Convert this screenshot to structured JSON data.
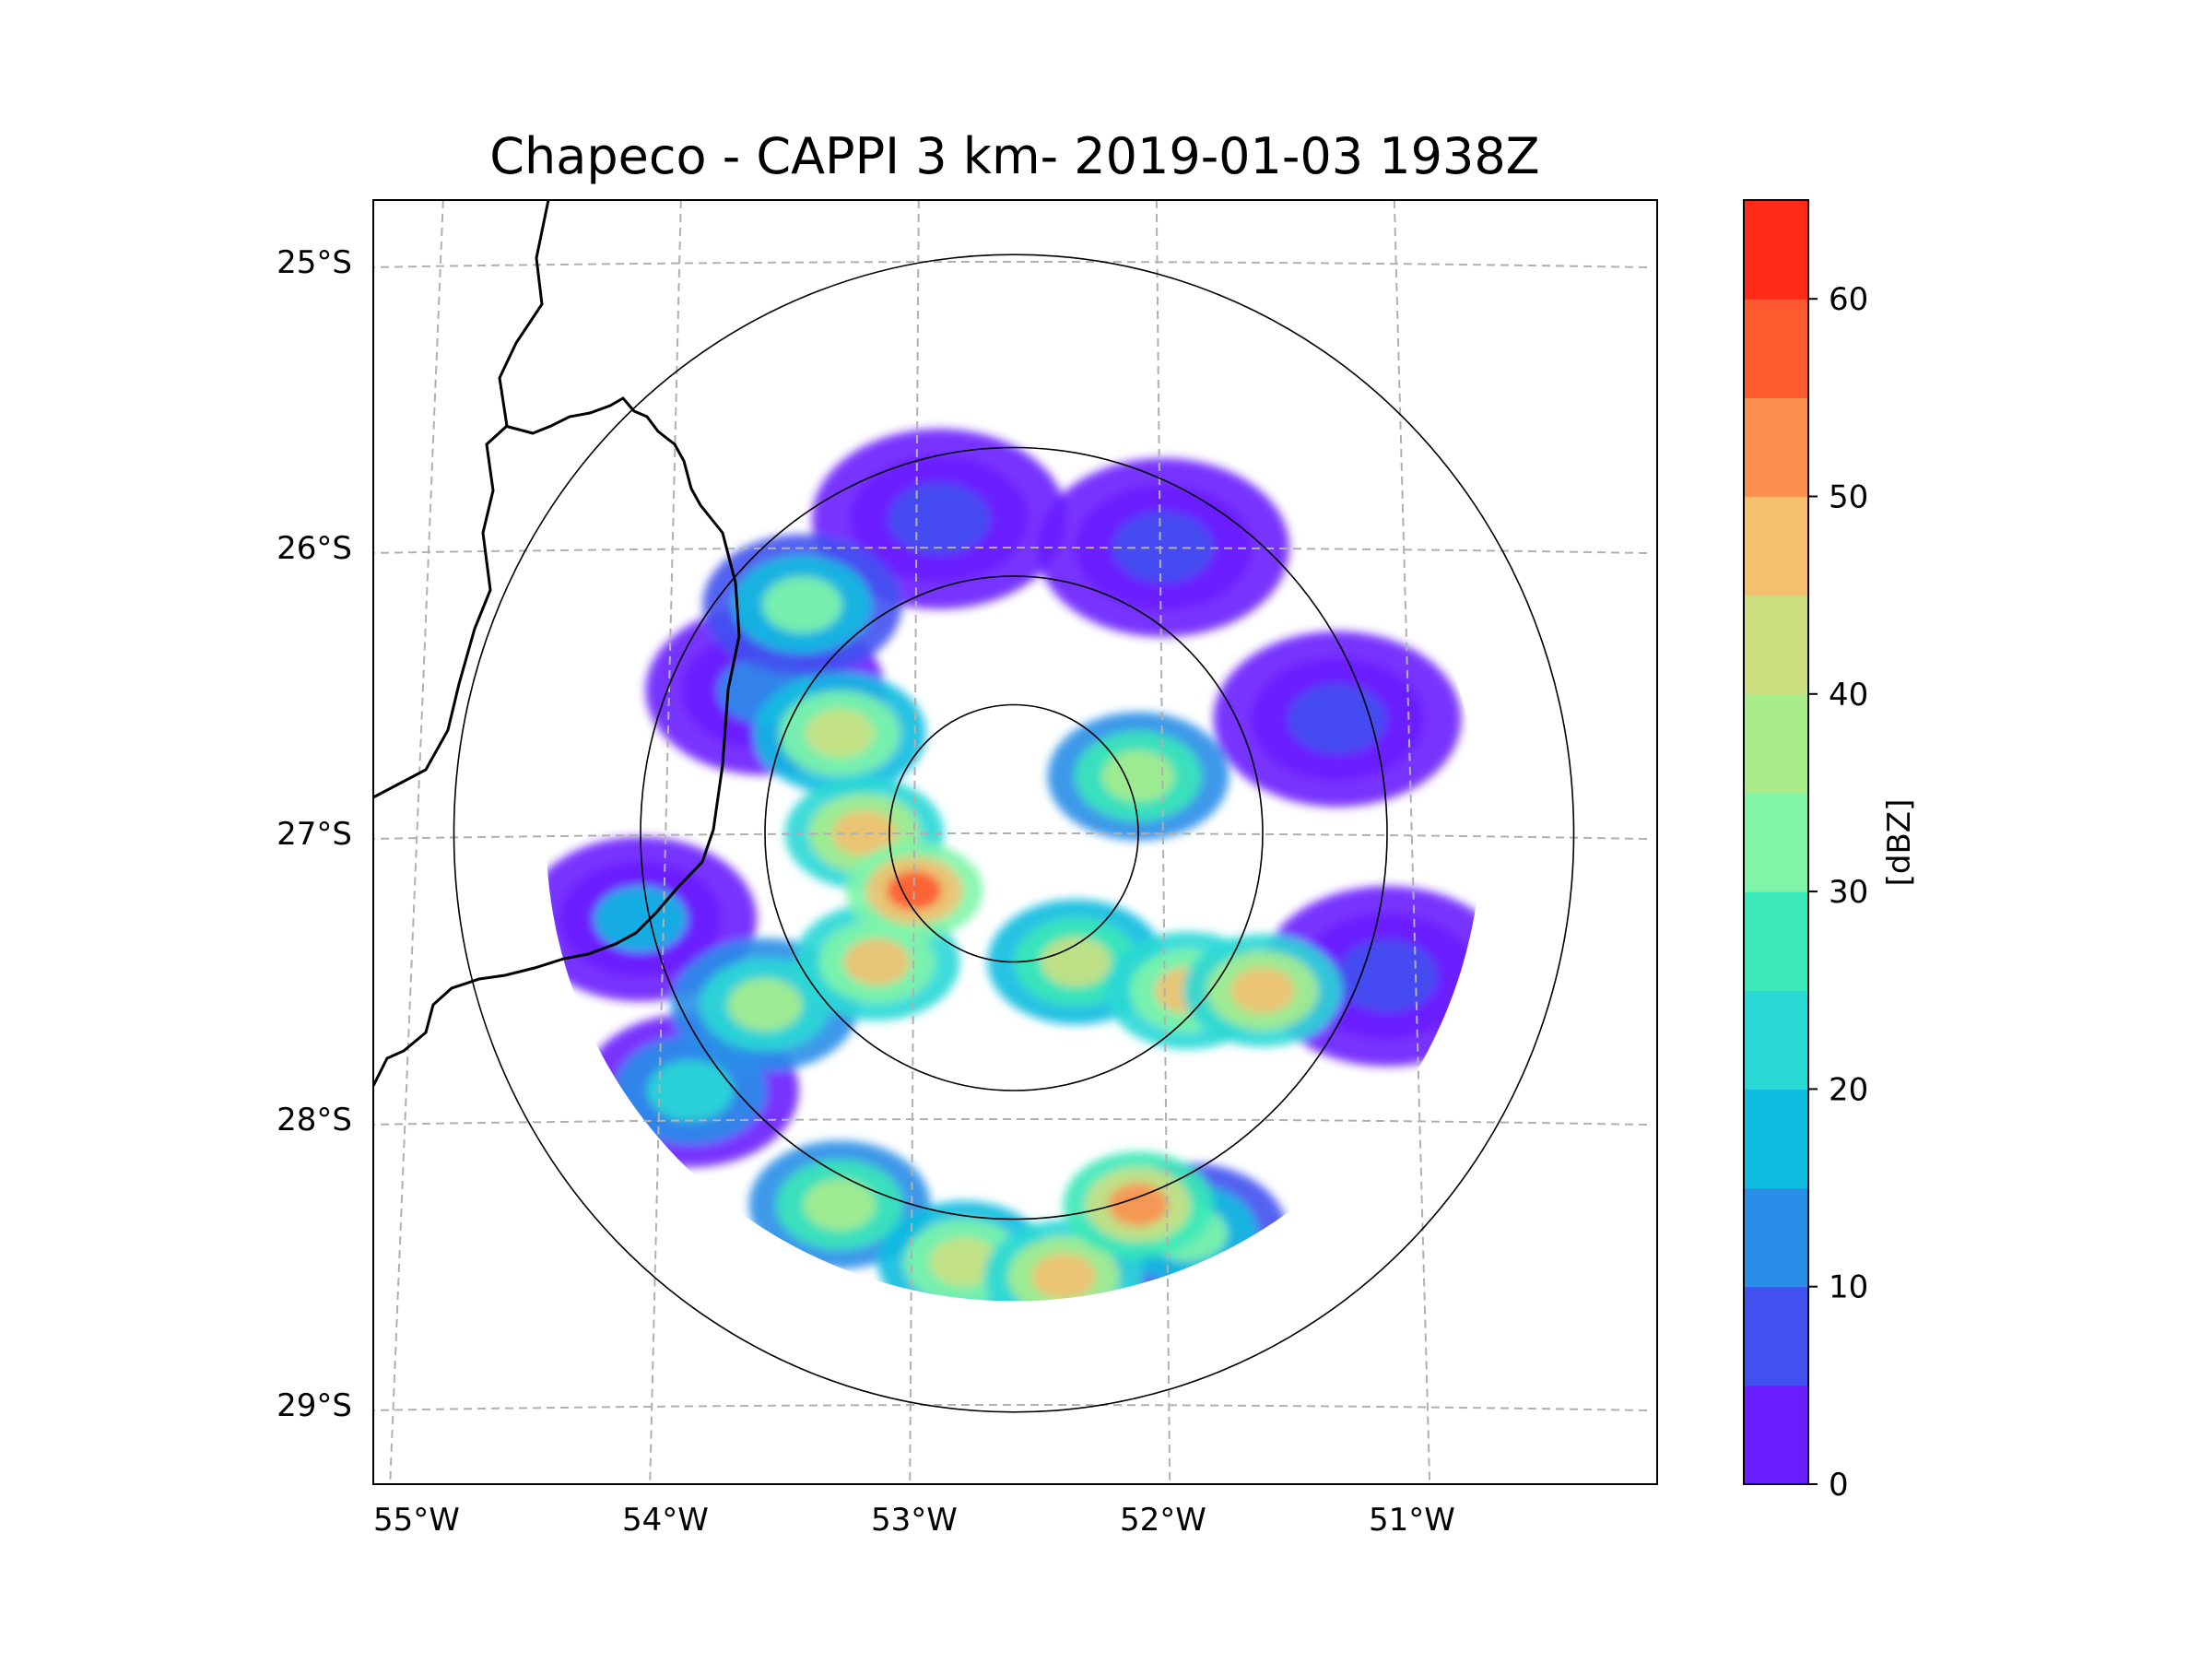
{
  "title": "Chapeco - CAPPI 3 km- 2019-01-03 1938Z",
  "map": {
    "lat_labels": [
      "25°S",
      "26°S",
      "27°S",
      "28°S",
      "29°S"
    ],
    "lon_labels": [
      "55°W",
      "54°W",
      "53°W",
      "52°W",
      "51°W"
    ],
    "gridline_color": "#b0b0b0",
    "radar_center": {
      "lon": -52.6,
      "lat": -27.0
    },
    "range_rings_deg": [
      0.5,
      1.0,
      1.5,
      2.25
    ],
    "data_coverage_max_deg": 1.75
  },
  "colorbar": {
    "label": "[dBZ]",
    "tick_labels": [
      "0",
      "10",
      "20",
      "30",
      "40",
      "50",
      "60"
    ],
    "min": 0,
    "max": 65,
    "step": 5,
    "colors": [
      "#6a1eff",
      "#4151f0",
      "#2a8ee8",
      "#10bde0",
      "#2ad8d6",
      "#3ae8b8",
      "#80f5a8",
      "#a8ec8c",
      "#cce082",
      "#f4c070",
      "#fc9050",
      "#fe5a30",
      "#ff2a18"
    ]
  },
  "echoes": [
    {
      "lon": -53.45,
      "lat": -26.2,
      "dbz": 30
    },
    {
      "lon": -53.3,
      "lat": -26.65,
      "dbz": 42
    },
    {
      "lon": -53.2,
      "lat": -27.0,
      "dbz": 48
    },
    {
      "lon": -53.0,
      "lat": -27.2,
      "dbz": 58
    },
    {
      "lon": -53.15,
      "lat": -27.45,
      "dbz": 45
    },
    {
      "lon": -53.6,
      "lat": -27.6,
      "dbz": 35
    },
    {
      "lon": -53.9,
      "lat": -27.9,
      "dbz": 22
    },
    {
      "lon": -54.1,
      "lat": -27.3,
      "dbz": 15
    },
    {
      "lon": -53.3,
      "lat": -28.3,
      "dbz": 38
    },
    {
      "lon": -52.8,
      "lat": -28.5,
      "dbz": 42
    },
    {
      "lon": -52.4,
      "lat": -28.55,
      "dbz": 48
    },
    {
      "lon": -52.1,
      "lat": -28.3,
      "dbz": 52
    },
    {
      "lon": -51.9,
      "lat": -28.4,
      "dbz": 30
    },
    {
      "lon": -51.6,
      "lat": -27.55,
      "dbz": 48
    },
    {
      "lon": -51.9,
      "lat": -27.55,
      "dbz": 45
    },
    {
      "lon": -52.35,
      "lat": -27.45,
      "dbz": 40
    },
    {
      "lon": -52.1,
      "lat": -26.8,
      "dbz": 38
    },
    {
      "lon": -51.1,
      "lat": -27.5,
      "dbz": 5
    },
    {
      "lon": -51.3,
      "lat": -26.6,
      "dbz": 8
    },
    {
      "lon": -52.0,
      "lat": -26.0,
      "dbz": 6
    },
    {
      "lon": -52.9,
      "lat": -25.9,
      "dbz": 5
    },
    {
      "lon": -53.6,
      "lat": -26.5,
      "dbz": 12
    }
  ]
}
